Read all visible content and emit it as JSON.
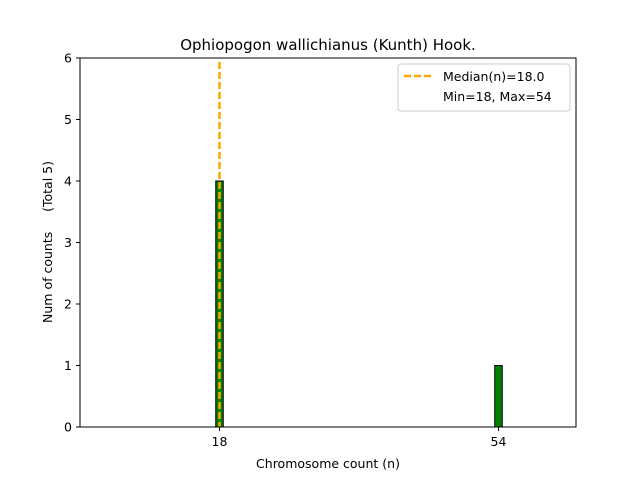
{
  "chart_data": {
    "type": "bar",
    "title": "Ophiopogon wallichianus (Kunth) Hook.",
    "xlabel": "Chromosome count (n)",
    "ylabel": "Num of counts     (Total 5)",
    "xlim": [
      0,
      64
    ],
    "ylim": [
      0,
      6
    ],
    "xticks": [
      18,
      54
    ],
    "yticks": [
      0,
      1,
      2,
      3,
      4,
      5,
      6
    ],
    "bars": [
      {
        "x": 18,
        "value": 4
      },
      {
        "x": 54,
        "value": 1
      }
    ],
    "bar_color": "#008000",
    "median": {
      "x": 18.0,
      "color": "#FFA500"
    },
    "legend": {
      "location": "top-right",
      "entries": [
        "Median(n)=18.0",
        "Min=18, Max=54"
      ]
    },
    "grid": false
  }
}
